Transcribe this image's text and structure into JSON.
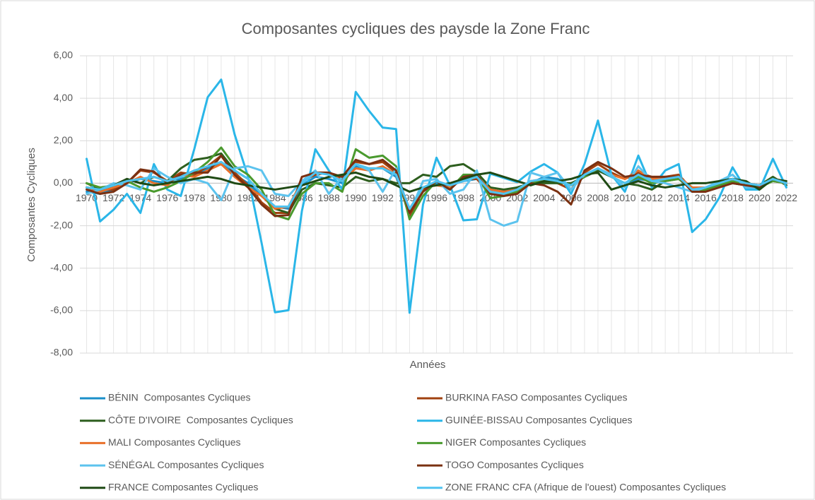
{
  "chart_data": {
    "type": "line",
    "title": "Composantes cycliques des paysde la Zone Franc",
    "x_label": "Années",
    "y_label": "Composantes Cycliques",
    "categories": [
      "1970",
      null,
      "1972",
      null,
      "1974",
      null,
      "1976",
      null,
      "1978",
      null,
      "1980",
      null,
      "1982",
      null,
      "1984",
      null,
      "1986",
      null,
      "1988",
      null,
      "1990",
      null,
      "1992",
      null,
      "1994",
      null,
      "1996",
      null,
      "1998",
      null,
      "2000",
      null,
      "2002",
      null,
      "2004",
      null,
      "2006",
      null,
      "2008",
      null,
      "2010",
      null,
      "2012",
      null,
      "2014",
      null,
      "2016",
      null,
      "2018",
      null,
      "2020",
      null,
      "2022"
    ],
    "ylim": [
      -8,
      6
    ],
    "yticks": [
      {
        "value": -8,
        "label": "-8,00"
      },
      {
        "value": -6,
        "label": "-6,00"
      },
      {
        "value": -4,
        "label": "-4,00"
      },
      {
        "value": -2,
        "label": "-2,00"
      },
      {
        "value": 0,
        "label": "0,00"
      },
      {
        "value": 2,
        "label": "2,00"
      },
      {
        "value": 4,
        "label": "4,00"
      },
      {
        "value": 6,
        "label": "6,00"
      }
    ],
    "grid": true,
    "legend": "bottom",
    "series": [
      {
        "name": "BÉNIN  Composantes Cycliques",
        "color": "#1a8fc9",
        "values": [
          -0.4,
          -0.5,
          -0.3,
          0,
          0.2,
          0.1,
          0,
          0.2,
          0.4,
          0.7,
          1.0,
          0.4,
          0,
          -0.6,
          -1.1,
          -1.2,
          -0.1,
          0.3,
          0.2,
          0,
          0.8,
          0.7,
          0.7,
          0.3,
          -1.3,
          -0.2,
          0,
          -0.1,
          0.1,
          0.2,
          -0.3,
          -0.4,
          -0.2,
          0,
          0.3,
          0.2,
          -0.1,
          0.3,
          0.6,
          0.3,
          0,
          0.2,
          0.1,
          0.2,
          0.2,
          -0.2,
          -0.2,
          -0.1,
          0.1,
          0,
          -0.1,
          0.1,
          0
        ]
      },
      {
        "name": "BURKINA FASO Composantes Cycliques",
        "color": "#a0410f",
        "values": [
          -0.2,
          -0.3,
          -0.3,
          0,
          0.6,
          0.5,
          0.1,
          0.5,
          0.4,
          0.8,
          1.3,
          0.5,
          -0.1,
          -0.9,
          -1.4,
          -1.4,
          0.1,
          0.4,
          0.5,
          0.2,
          1.0,
          0.9,
          1.0,
          0.5,
          -1.6,
          -0.3,
          0.1,
          -0.1,
          0.2,
          0.2,
          -0.5,
          -0.5,
          -0.4,
          0,
          0.1,
          0,
          -0.3,
          0.5,
          0.9,
          0.5,
          0.2,
          0.5,
          0.3,
          0.3,
          0.4,
          -0.3,
          -0.3,
          -0.1,
          0.1,
          0,
          -0.1,
          0.2,
          0
        ]
      },
      {
        "name": "CÔTE D'IVOIRE  Composantes Cycliques",
        "color": "#2d5e1e",
        "values": [
          0,
          -0.3,
          -0.2,
          0.2,
          0,
          0.3,
          0.1,
          0.7,
          1.1,
          1.2,
          1.4,
          0.6,
          0.2,
          -0.5,
          -1.2,
          -1.4,
          -0.3,
          0,
          -0.1,
          -0.2,
          0.3,
          0.1,
          0.2,
          0,
          0,
          0.4,
          0.3,
          0.8,
          0.9,
          0.5,
          -0.2,
          -0.3,
          -0.2,
          0,
          0,
          0,
          0,
          0.3,
          0.6,
          0.3,
          0,
          -0.1,
          -0.3,
          0.1,
          0.2,
          -0.2,
          -0.2,
          -0.1,
          0,
          -0.1,
          -0.1,
          0.3,
          -0.1
        ]
      },
      {
        "name": "GUINÉE-BISSAU Composantes Cycliques",
        "color": "#2ab6e8",
        "values": [
          1.15,
          -1.8,
          -1.25,
          -0.5,
          -1.4,
          0.9,
          -0.3,
          -0.6,
          1.6,
          4.05,
          4.88,
          2.3,
          0.3,
          -2.8,
          -6.08,
          -5.98,
          -1.3,
          1.6,
          0.6,
          -0.3,
          4.3,
          3.4,
          2.62,
          2.55,
          -6.1,
          -1.0,
          1.2,
          -0.1,
          -1.75,
          -1.7,
          0.45,
          0.25,
          0.05,
          0.55,
          0.9,
          0.5,
          -0.5,
          0.9,
          2.95,
          0.4,
          -0.4,
          1.3,
          -0.2,
          0.6,
          0.9,
          -2.3,
          -1.7,
          -0.7,
          0.75,
          -0.3,
          -0.3,
          1.15,
          -0.2
        ]
      },
      {
        "name": "MALI Composantes Cycliques",
        "color": "#e8702a",
        "values": [
          -0.3,
          -0.4,
          -0.2,
          0,
          0.3,
          0,
          -0.1,
          0.4,
          0.3,
          0.6,
          0.9,
          0.3,
          -0.2,
          -0.6,
          -1.2,
          -1.1,
          0.1,
          0.5,
          0.5,
          0.1,
          0.7,
          0.6,
          0.8,
          0.4,
          -1.3,
          -0.2,
          -0.1,
          -0.2,
          0.2,
          0.3,
          -0.3,
          -0.4,
          -0.3,
          0.1,
          0.2,
          0.1,
          -0.1,
          0.3,
          0.7,
          0.4,
          0.2,
          0.6,
          0.2,
          0.2,
          0.3,
          -0.2,
          -0.2,
          0,
          0.1,
          0,
          -0.1,
          0.1,
          0
        ]
      },
      {
        "name": "NIGER Composantes Cycliques",
        "color": "#4a9a2e",
        "values": [
          0,
          -0.2,
          -0.1,
          0.1,
          -0.2,
          -0.4,
          -0.2,
          0.1,
          0.5,
          1.0,
          1.68,
          0.8,
          0.4,
          -0.3,
          -1.5,
          -1.7,
          -0.5,
          0,
          0,
          -0.4,
          1.6,
          1.2,
          1.3,
          0.8,
          -1.7,
          -0.6,
          0.1,
          -0.3,
          0.4,
          0.4,
          -0.7,
          -0.6,
          -0.4,
          0,
          0.1,
          0.1,
          -0.1,
          0.3,
          0.7,
          0.3,
          0,
          0.3,
          0,
          0.1,
          0.2,
          -0.3,
          -0.3,
          -0.1,
          0.1,
          -0.1,
          -0.2,
          0.1,
          0
        ]
      },
      {
        "name": "SÉNÉGAL Composantes Cycliques",
        "color": "#5cc3ee",
        "values": [
          -0.5,
          -0.3,
          0,
          -0.1,
          -0.3,
          0.7,
          0.3,
          0,
          0.2,
          0,
          -0.8,
          0.7,
          0.8,
          0.6,
          -0.5,
          -0.6,
          0.1,
          0.6,
          -0.5,
          0.3,
          0.9,
          0.6,
          -0.4,
          0.7,
          -1.4,
          0.1,
          0.2,
          -0.5,
          -0.3,
          0.6,
          -1.7,
          -2.0,
          -1.8,
          0.5,
          0.3,
          0.5,
          -0.3,
          0.4,
          0.7,
          0.4,
          -0.2,
          0.8,
          0.1,
          0,
          -0.2,
          -0.4,
          -0.2,
          0.1,
          0.4,
          -0.2,
          -0.2,
          0.2,
          0
        ]
      },
      {
        "name": "TOGO Composantes Cycliques",
        "color": "#7a3011",
        "values": [
          -0.3,
          -0.5,
          -0.4,
          0,
          0.65,
          0.55,
          0,
          0.4,
          0.5,
          0.5,
          1.3,
          0.4,
          -0.2,
          -1.0,
          -1.55,
          -1.5,
          0.3,
          0.5,
          0.5,
          0.3,
          1.1,
          0.9,
          1.1,
          0.6,
          -1.4,
          -0.4,
          0.1,
          -0.3,
          0.3,
          0.4,
          -0.5,
          -0.6,
          -0.5,
          0,
          -0.1,
          -0.4,
          -1.0,
          0.6,
          1.0,
          0.7,
          0.3,
          0.4,
          0.3,
          0.3,
          0.3,
          -0.4,
          -0.4,
          -0.2,
          0,
          -0.1,
          -0.2,
          0.2,
          0
        ]
      },
      {
        "name": "FRANCE Composantes Cycliques",
        "color": "#1f4a14",
        "values": [
          -0.2,
          -0.3,
          -0.1,
          0.2,
          0,
          -0.1,
          0,
          0.1,
          0.2,
          0.3,
          0.2,
          0,
          -0.1,
          -0.2,
          -0.3,
          -0.2,
          -0.1,
          0.1,
          0.3,
          0.4,
          0.5,
          0.3,
          0.2,
          -0.1,
          -0.4,
          -0.2,
          -0.1,
          0,
          0.2,
          0.4,
          0.5,
          0.3,
          0.1,
          -0.1,
          0.1,
          0.1,
          0.2,
          0.4,
          0.5,
          -0.3,
          -0.1,
          0.1,
          -0.1,
          -0.2,
          -0.1,
          0,
          0,
          0.1,
          0.2,
          0.1,
          -0.3,
          0.2,
          0.1
        ]
      },
      {
        "name": "ZONE FRANC CFA (Afrique de l'ouest) Composantes Cycliques",
        "color": "#4fc3f0",
        "values": [
          -0.2,
          -0.3,
          -0.1,
          0.1,
          0.2,
          0.3,
          0.1,
          0.3,
          0.6,
          0.8,
          1.0,
          0.6,
          0.2,
          -0.5,
          -1.1,
          -1.1,
          0,
          0.5,
          0.4,
          0.1,
          0.9,
          0.7,
          0.7,
          0.4,
          -1.2,
          -0.2,
          0.1,
          -0.1,
          0.1,
          0.3,
          -0.4,
          -0.5,
          -0.3,
          0.1,
          0.2,
          0.1,
          -0.1,
          0.4,
          0.7,
          0.3,
          0,
          0.4,
          0.1,
          0.2,
          0.3,
          -0.3,
          -0.2,
          0,
          0.2,
          0,
          -0.1,
          0.2,
          0
        ]
      }
    ]
  }
}
